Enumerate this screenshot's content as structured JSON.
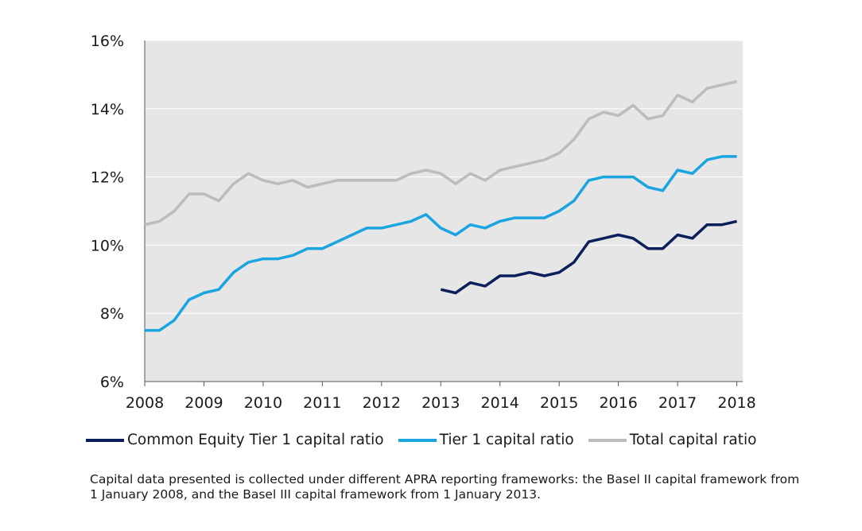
{
  "chart_data": {
    "type": "line",
    "title": "",
    "xlabel": "",
    "ylabel": "",
    "xlim": [
      2008,
      2018.1
    ],
    "ylim": [
      6,
      16
    ],
    "y_tick_values": [
      6,
      8,
      10,
      12,
      14,
      16
    ],
    "y_tick_labels": [
      "6%",
      "8%",
      "10%",
      "12%",
      "14%",
      "16%"
    ],
    "x_tick_values": [
      2008,
      2009,
      2010,
      2011,
      2012,
      2013,
      2014,
      2015,
      2016,
      2017,
      2018
    ],
    "x_tick_labels": [
      "2008",
      "2009",
      "2010",
      "2011",
      "2012",
      "2013",
      "2014",
      "2015",
      "2016",
      "2017",
      "2018"
    ],
    "grid": "horizontal",
    "legend_position": "bottom",
    "plot_background": "#e6e6e6",
    "series": [
      {
        "name": "Common Equity Tier 1 capital ratio",
        "color": "#0b1f5c",
        "x": [
          2013.0,
          2013.25,
          2013.5,
          2013.75,
          2014.0,
          2014.25,
          2014.5,
          2014.75,
          2015.0,
          2015.25,
          2015.5,
          2015.75,
          2016.0,
          2016.25,
          2016.5,
          2016.75,
          2017.0,
          2017.25,
          2017.5,
          2017.75,
          2018.0
        ],
        "y": [
          8.7,
          8.6,
          8.9,
          8.8,
          9.1,
          9.1,
          9.2,
          9.1,
          9.2,
          9.5,
          10.1,
          10.2,
          10.3,
          10.2,
          9.9,
          9.9,
          10.3,
          10.2,
          10.6,
          10.6,
          10.7
        ]
      },
      {
        "name": "Tier 1 capital ratio",
        "color": "#1aa5e0",
        "x": [
          2008.0,
          2008.25,
          2008.5,
          2008.75,
          2009.0,
          2009.25,
          2009.5,
          2009.75,
          2010.0,
          2010.25,
          2010.5,
          2010.75,
          2011.0,
          2011.25,
          2011.5,
          2011.75,
          2012.0,
          2012.25,
          2012.5,
          2012.75,
          2013.0,
          2013.25,
          2013.5,
          2013.75,
          2014.0,
          2014.25,
          2014.5,
          2014.75,
          2015.0,
          2015.25,
          2015.5,
          2015.75,
          2016.0,
          2016.25,
          2016.5,
          2016.75,
          2017.0,
          2017.25,
          2017.5,
          2017.75,
          2018.0
        ],
        "y": [
          7.5,
          7.5,
          7.8,
          8.4,
          8.6,
          8.7,
          9.2,
          9.5,
          9.6,
          9.6,
          9.7,
          9.9,
          9.9,
          10.1,
          10.3,
          10.5,
          10.5,
          10.6,
          10.7,
          10.9,
          10.5,
          10.3,
          10.6,
          10.5,
          10.7,
          10.8,
          10.8,
          10.8,
          11.0,
          11.3,
          11.9,
          12.0,
          12.0,
          12.0,
          11.7,
          11.6,
          12.2,
          12.1,
          12.5,
          12.6,
          12.6
        ]
      },
      {
        "name": "Total capital ratio",
        "color": "#bcbcbc",
        "x": [
          2008.0,
          2008.25,
          2008.5,
          2008.75,
          2009.0,
          2009.25,
          2009.5,
          2009.75,
          2010.0,
          2010.25,
          2010.5,
          2010.75,
          2011.0,
          2011.25,
          2011.5,
          2011.75,
          2012.0,
          2012.25,
          2012.5,
          2012.75,
          2013.0,
          2013.25,
          2013.5,
          2013.75,
          2014.0,
          2014.25,
          2014.5,
          2014.75,
          2015.0,
          2015.25,
          2015.5,
          2015.75,
          2016.0,
          2016.25,
          2016.5,
          2016.75,
          2017.0,
          2017.25,
          2017.5,
          2017.75,
          2018.0
        ],
        "y": [
          10.6,
          10.7,
          11.0,
          11.5,
          11.5,
          11.3,
          11.8,
          12.1,
          11.9,
          11.8,
          11.9,
          11.7,
          11.8,
          11.9,
          11.9,
          11.9,
          11.9,
          11.9,
          12.1,
          12.2,
          12.1,
          11.8,
          12.1,
          11.9,
          12.2,
          12.3,
          12.4,
          12.5,
          12.7,
          13.1,
          13.7,
          13.9,
          13.8,
          14.1,
          13.7,
          13.8,
          14.4,
          14.2,
          14.6,
          14.7,
          14.8
        ]
      }
    ]
  },
  "footnote": "Capital data presented is collected under different APRA reporting frameworks: the Basel II capital framework from 1 January 2008, and the Basel III capital framework from 1 January 2013."
}
